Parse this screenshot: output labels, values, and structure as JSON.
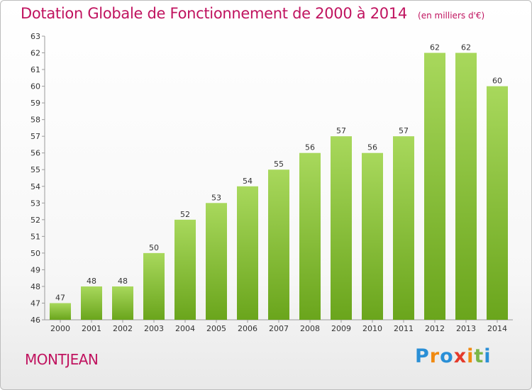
{
  "header": {
    "title": "Dotation Globale de Fonctionnement de 2000 à 2014",
    "subtitle": "(en milliers d'€)"
  },
  "footer": {
    "commune": "MONTJEAN",
    "logo_letters": [
      "P",
      "r",
      "o",
      "x",
      "i",
      "t",
      "i"
    ],
    "logo_colors": [
      "#2a8fd6",
      "#f08a12",
      "#2a8fd6",
      "#e43a2b",
      "#f08a12",
      "#7ab648",
      "#2a8fd6"
    ]
  },
  "colors": {
    "bar_light": "#a8d85c",
    "bar_dark": "#6aa51c",
    "text_accent": "#c0135f"
  },
  "chart_data": {
    "type": "bar",
    "title": "Dotation Globale de Fonctionnement de 2000 à 2014",
    "subtitle": "(en milliers d'€)",
    "categories": [
      "2000",
      "2001",
      "2002",
      "2003",
      "2004",
      "2005",
      "2006",
      "2007",
      "2008",
      "2009",
      "2010",
      "2011",
      "2012",
      "2013",
      "2014"
    ],
    "values": [
      47,
      48,
      48,
      50,
      52,
      53,
      54,
      55,
      56,
      57,
      56,
      57,
      62,
      62,
      60
    ],
    "ylim": [
      46,
      63
    ],
    "yticks": [
      46,
      47,
      48,
      49,
      50,
      51,
      52,
      53,
      54,
      55,
      56,
      57,
      58,
      59,
      60,
      61,
      62,
      63
    ],
    "xlabel": "",
    "ylabel": "",
    "grid": false,
    "legend": "none"
  }
}
